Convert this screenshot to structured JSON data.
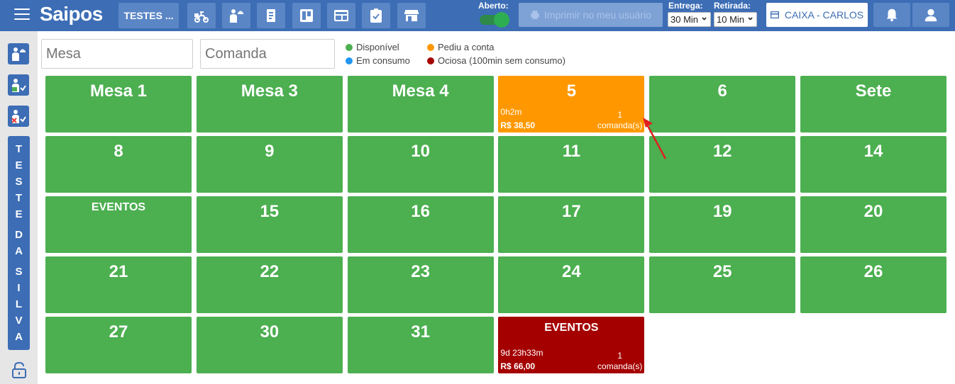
{
  "header": {
    "logo": "Saipos",
    "store": "TESTES ...",
    "aberto_label": "Aberto:",
    "print_label": "Imprimir no meu usuário",
    "entrega_label": "Entrega:",
    "entrega_value": "30 Min",
    "retirada_label": "Retirada:",
    "retirada_value": "10 Min",
    "caixa_label": "CAIXA - CARLOS"
  },
  "sidebar": {
    "name_letters": [
      "T",
      "E",
      "S",
      "T",
      "E",
      "",
      "D",
      "A",
      "",
      "S",
      "I",
      "L",
      "V",
      "A"
    ]
  },
  "search": {
    "mesa_placeholder": "Mesa",
    "comanda_placeholder": "Comanda"
  },
  "legend": {
    "disponivel": "Disponível",
    "em_consumo": "Em consumo",
    "pediu": "Pediu a conta",
    "ociosa": "Ociosa (100min sem consumo)"
  },
  "colors": {
    "green": "#4caf50",
    "blue": "#2196f3",
    "orange": "#ff9800",
    "red": "#a50000",
    "brand": "#3c6db5"
  },
  "tables": [
    {
      "label": "Mesa 1",
      "status": "disponivel"
    },
    {
      "label": "Mesa 3",
      "status": "disponivel"
    },
    {
      "label": "Mesa 4",
      "status": "disponivel"
    },
    {
      "label": "5",
      "status": "pediu",
      "time": "0h2m",
      "price": "R$ 38,50",
      "count": "1",
      "count_label": "comanda(s)"
    },
    {
      "label": "6",
      "status": "disponivel"
    },
    {
      "label": "Sete",
      "status": "disponivel"
    },
    {
      "label": "8",
      "status": "disponivel"
    },
    {
      "label": "9",
      "status": "disponivel"
    },
    {
      "label": "10",
      "status": "disponivel"
    },
    {
      "label": "11",
      "status": "disponivel"
    },
    {
      "label": "12",
      "status": "disponivel"
    },
    {
      "label": "14",
      "status": "disponivel"
    },
    {
      "label": "EVENTOS",
      "status": "disponivel",
      "small": true
    },
    {
      "label": "15",
      "status": "disponivel"
    },
    {
      "label": "16",
      "status": "disponivel"
    },
    {
      "label": "17",
      "status": "disponivel"
    },
    {
      "label": "19",
      "status": "disponivel"
    },
    {
      "label": "20",
      "status": "disponivel"
    },
    {
      "label": "21",
      "status": "disponivel"
    },
    {
      "label": "22",
      "status": "disponivel"
    },
    {
      "label": "23",
      "status": "disponivel"
    },
    {
      "label": "24",
      "status": "disponivel"
    },
    {
      "label": "25",
      "status": "disponivel"
    },
    {
      "label": "26",
      "status": "disponivel"
    },
    {
      "label": "27",
      "status": "disponivel"
    },
    {
      "label": "30",
      "status": "disponivel"
    },
    {
      "label": "31",
      "status": "disponivel"
    },
    {
      "label": "EVENTOS",
      "status": "ociosa",
      "small": true,
      "time": "9d 23h33m",
      "price": "R$ 66,00",
      "count": "1",
      "count_label": "comanda(s)"
    }
  ]
}
